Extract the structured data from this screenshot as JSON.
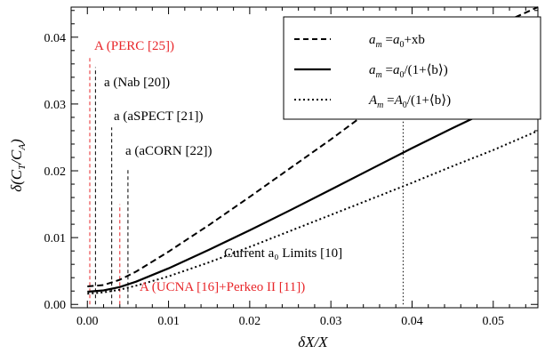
{
  "chart_data": {
    "type": "line",
    "xlabel_html": "δX/X",
    "ylabel": "δ(C_T/C_A)",
    "xlim": [
      -0.002,
      0.0555
    ],
    "ylim": [
      -0.0005,
      0.0445
    ],
    "xticks": [
      0.0,
      0.01,
      0.02,
      0.03,
      0.04,
      0.05
    ],
    "xtick_labels": [
      "0.00",
      "0.01",
      "0.02",
      "0.03",
      "0.04",
      "0.05"
    ],
    "yticks": [
      0.0,
      0.01,
      0.02,
      0.03,
      0.04
    ],
    "ytick_labels": [
      "0.00",
      "0.01",
      "0.02",
      "0.03",
      "0.04"
    ],
    "grid": false,
    "legend_placement": "top-right",
    "series": [
      {
        "name": "a_m=a_0+xb",
        "style": "dashed",
        "x": [
          0.0,
          0.002,
          0.004,
          0.006,
          0.008,
          0.01,
          0.015,
          0.02,
          0.025,
          0.03,
          0.035,
          0.04,
          0.045,
          0.05,
          0.0555
        ],
        "y": [
          0.0027,
          0.0029,
          0.0037,
          0.0049,
          0.0064,
          0.0079,
          0.0119,
          0.0161,
          0.0204,
          0.0247,
          0.0292,
          0.0336,
          0.0378,
          0.0415,
          0.0445
        ]
      },
      {
        "name": "a_m=a_0/(1+⟨b⟩)",
        "style": "solid",
        "x": [
          0.0,
          0.002,
          0.004,
          0.006,
          0.008,
          0.01,
          0.015,
          0.02,
          0.025,
          0.03,
          0.035,
          0.04,
          0.045,
          0.05,
          0.0555
        ],
        "y": [
          0.0019,
          0.0021,
          0.0026,
          0.0034,
          0.0044,
          0.0054,
          0.0082,
          0.0111,
          0.0141,
          0.0172,
          0.0203,
          0.0234,
          0.0264,
          0.0293,
          0.0324
        ]
      },
      {
        "name": "A_m=A_0/(1+⟨b⟩)",
        "style": "dotted",
        "x": [
          0.0,
          0.002,
          0.004,
          0.006,
          0.008,
          0.01,
          0.015,
          0.02,
          0.025,
          0.03,
          0.035,
          0.04,
          0.045,
          0.05,
          0.0555
        ],
        "y": [
          0.0016,
          0.0018,
          0.0022,
          0.0028,
          0.0035,
          0.0042,
          0.0063,
          0.0086,
          0.011,
          0.0134,
          0.0158,
          0.0182,
          0.0207,
          0.0231,
          0.026
        ]
      }
    ],
    "limit_lines": [
      {
        "x": 0.0003,
        "ymax": 0.037,
        "color": "#e8262a",
        "style": "dashed",
        "label": "A (PERC [25])",
        "label_color": "#e8262a"
      },
      {
        "x": 0.001,
        "ymax": 0.0355,
        "color": "#000000",
        "style": "dashed",
        "label": "a (Nab [20])",
        "label_color": "#000000"
      },
      {
        "x": 0.003,
        "ymax": 0.0265,
        "color": "#000000",
        "style": "dashed",
        "label": "a (aSPECT [21])",
        "label_color": "#000000"
      },
      {
        "x": 0.004,
        "ymax": 0.015,
        "color": "#e8262a",
        "style": "dashed",
        "label": "",
        "label_color": "#e8262a"
      },
      {
        "x": 0.005,
        "ymax": 0.0202,
        "color": "#000000",
        "style": "dashed",
        "label": "a (aCORN [22])",
        "label_color": "#000000"
      },
      {
        "x": 0.0389,
        "ymax": 0.0395,
        "color": "#000000",
        "style": "dotted",
        "label": "",
        "label_color": "#000000"
      }
    ],
    "annotations": [
      {
        "text": "Current a₀ Limits [10]",
        "color": "#000000"
      },
      {
        "text": "A (UCNA [16]+Perkeo II [11])",
        "color": "#e8262a"
      }
    ]
  }
}
